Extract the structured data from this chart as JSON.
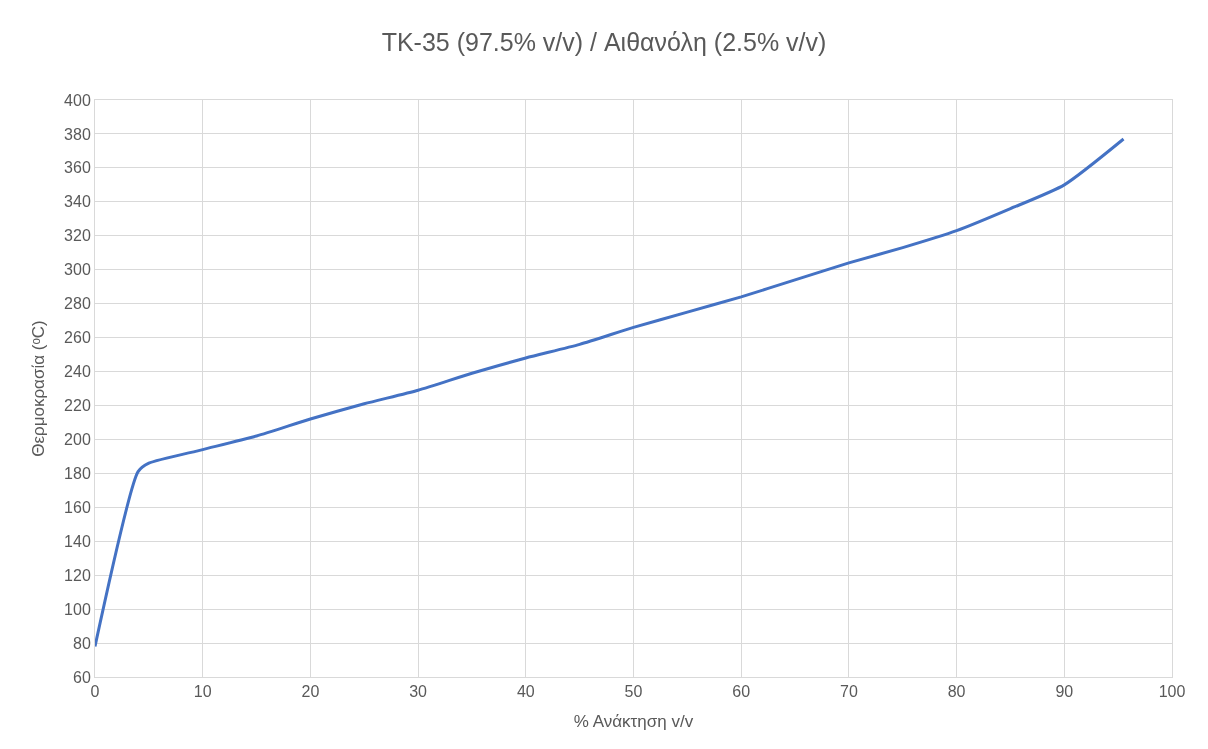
{
  "chart_data": {
    "type": "line",
    "title": "TK-35 (97.5% v/v) / Αιθανόλη (2.5% v/v)",
    "xlabel": "% Ανάκτηση v/v",
    "ylabel": "Θερμοκρασία (ᵒC)",
    "x": [
      0,
      4,
      5,
      10,
      15,
      20,
      25,
      30,
      35,
      40,
      45,
      50,
      55,
      60,
      65,
      70,
      75,
      80,
      85,
      90,
      95.5
    ],
    "series": [
      {
        "color": "#4472c4",
        "values": [
          78,
          181,
          186,
          194,
          202,
          212,
          221,
          229,
          239,
          248,
          256,
          266,
          275,
          284,
          294,
          304,
          313,
          323,
          336,
          350,
          377
        ]
      }
    ],
    "xlim": [
      0,
      100
    ],
    "xticks": [
      0,
      10,
      20,
      30,
      40,
      50,
      60,
      70,
      80,
      90,
      100
    ],
    "ylim": [
      60,
      400
    ],
    "yticks": [
      60,
      80,
      100,
      120,
      140,
      160,
      180,
      200,
      220,
      240,
      260,
      280,
      300,
      320,
      340,
      360,
      380,
      400
    ],
    "grid": true,
    "marker": "none",
    "line_style": "solid"
  }
}
